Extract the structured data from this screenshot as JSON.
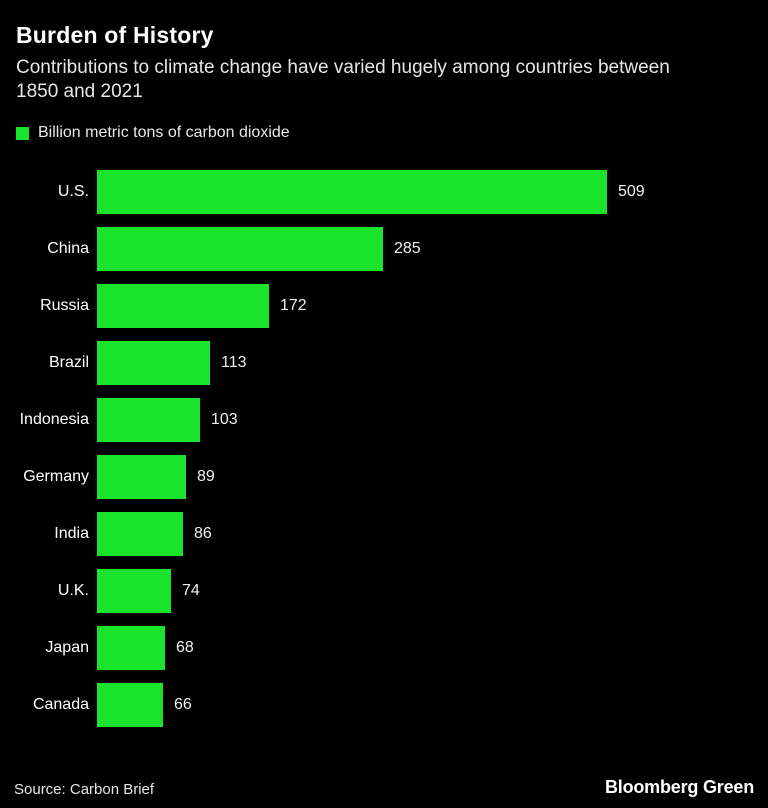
{
  "page": {
    "background": "#000000"
  },
  "header": {
    "title": "Burden of History",
    "subtitle": "Contributions to climate change have varied hugely among countries between 1850 and 2021"
  },
  "legend": {
    "label": "Billion metric tons of carbon dioxide",
    "swatch_color": "#1ae32c"
  },
  "chart_data": {
    "type": "bar",
    "orientation": "horizontal",
    "title": "Burden of History",
    "subtitle": "Contributions to climate change have varied hugely among countries between 1850 and 2021",
    "unit_label": "Billion metric tons of carbon dioxide",
    "categories": [
      "U.S.",
      "China",
      "Russia",
      "Brazil",
      "Indonesia",
      "Germany",
      "India",
      "U.K.",
      "Japan",
      "Canada"
    ],
    "values": [
      509,
      285,
      172,
      113,
      103,
      89,
      86,
      74,
      68,
      66
    ],
    "xlim": [
      0,
      509
    ],
    "bar_color": "#1ae32c",
    "background_color": "#000000",
    "grid": false,
    "value_labels": true,
    "legend_position": "top-left"
  },
  "footer": {
    "source": "Source: Carbon Brief",
    "brand": "Bloomberg Green"
  }
}
